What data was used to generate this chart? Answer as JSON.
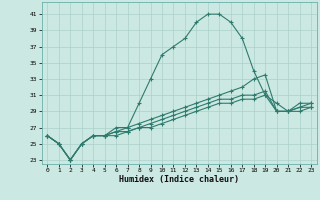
{
  "xlabel": "Humidex (Indice chaleur)",
  "background_color": "#cce8e2",
  "grid_color": "#aad0ca",
  "line_color": "#2e7b6e",
  "xlim": [
    -0.5,
    23.5
  ],
  "ylim": [
    22.5,
    42.5
  ],
  "yticks": [
    23,
    25,
    27,
    29,
    31,
    33,
    35,
    37,
    39,
    41
  ],
  "xticks": [
    0,
    1,
    2,
    3,
    4,
    5,
    6,
    7,
    8,
    9,
    10,
    11,
    12,
    13,
    14,
    15,
    16,
    17,
    18,
    19,
    20,
    21,
    22,
    23
  ],
  "lines": [
    [
      26,
      25,
      23,
      25,
      26,
      26,
      27,
      27,
      30,
      33,
      36,
      37,
      38,
      40,
      41,
      41,
      40,
      38,
      34,
      31,
      30,
      29,
      30,
      30
    ],
    [
      26,
      25,
      23,
      25,
      26,
      26,
      26.5,
      27,
      27.5,
      28,
      28.5,
      29,
      29.5,
      30,
      30.5,
      31,
      31.5,
      32,
      33,
      33.5,
      29,
      29,
      29.5,
      30
    ],
    [
      26,
      25,
      23,
      25,
      26,
      26,
      26.5,
      26.5,
      27,
      27.5,
      28,
      28.5,
      29,
      29.5,
      30,
      30.5,
      30.5,
      31,
      31,
      31.5,
      29,
      29,
      29.5,
      29.5
    ],
    [
      26,
      25,
      23,
      25,
      26,
      26,
      26,
      26.5,
      27,
      27,
      27.5,
      28,
      28.5,
      29,
      29.5,
      30,
      30,
      30.5,
      30.5,
      31,
      29,
      29,
      29,
      29.5
    ]
  ]
}
